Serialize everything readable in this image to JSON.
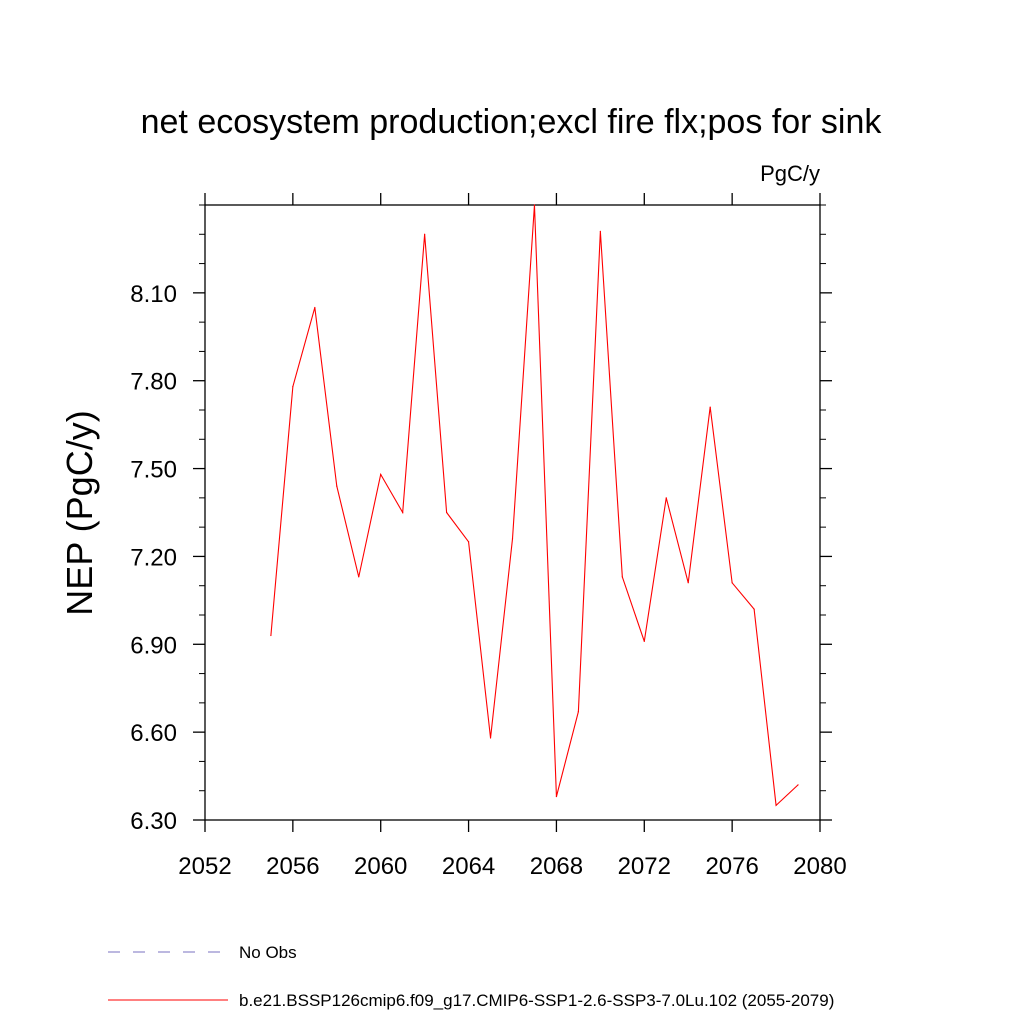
{
  "chart_data": {
    "type": "line",
    "title": "net ecosystem production;excl fire flx;pos for sink",
    "units": "PgC/y",
    "ylabel": "NEP  (PgC/y)",
    "xlabel": "",
    "xlim": [
      2052,
      2080
    ],
    "ylim": [
      6.3,
      8.4
    ],
    "xticks": [
      2052,
      2056,
      2060,
      2064,
      2068,
      2072,
      2076,
      2080
    ],
    "xtick_labels": [
      "2052",
      "2056",
      "2060",
      "2064",
      "2068",
      "2072",
      "2076",
      "2080"
    ],
    "yticks": [
      6.3,
      6.6,
      6.9,
      7.2,
      7.5,
      7.8,
      8.1
    ],
    "ytick_labels": [
      "6.30",
      "6.60",
      "6.90",
      "7.20",
      "7.50",
      "7.80",
      "8.10"
    ],
    "grid": false,
    "legend_position": "bottom",
    "series": [
      {
        "name": "b.e21.BSSP126cmip6.f09_g17.CMIP6-SSP1-2.6-SSP3-7.0Lu.102 (2055-2079)",
        "color": "#ff0000",
        "x": [
          2055,
          2056,
          2057,
          2058,
          2059,
          2060,
          2061,
          2062,
          2063,
          2064,
          2065,
          2066,
          2067,
          2068,
          2069,
          2070,
          2071,
          2072,
          2073,
          2074,
          2075,
          2076,
          2077,
          2078,
          2079
        ],
        "y": [
          6.93,
          7.78,
          8.05,
          7.44,
          7.13,
          7.48,
          7.35,
          8.3,
          7.35,
          7.25,
          6.58,
          7.26,
          8.4,
          6.38,
          6.67,
          8.31,
          7.13,
          6.91,
          7.4,
          7.11,
          7.71,
          7.11,
          7.02,
          6.35,
          6.42
        ]
      }
    ],
    "legend": [
      {
        "label": "No Obs",
        "color": "#7a70c0",
        "dash": "dashed"
      },
      {
        "label": "b.e21.BSSP126cmip6.f09_g17.CMIP6-SSP1-2.6-SSP3-7.0Lu.102 (2055-2079)",
        "color": "#ff0000",
        "dash": "solid"
      }
    ]
  }
}
